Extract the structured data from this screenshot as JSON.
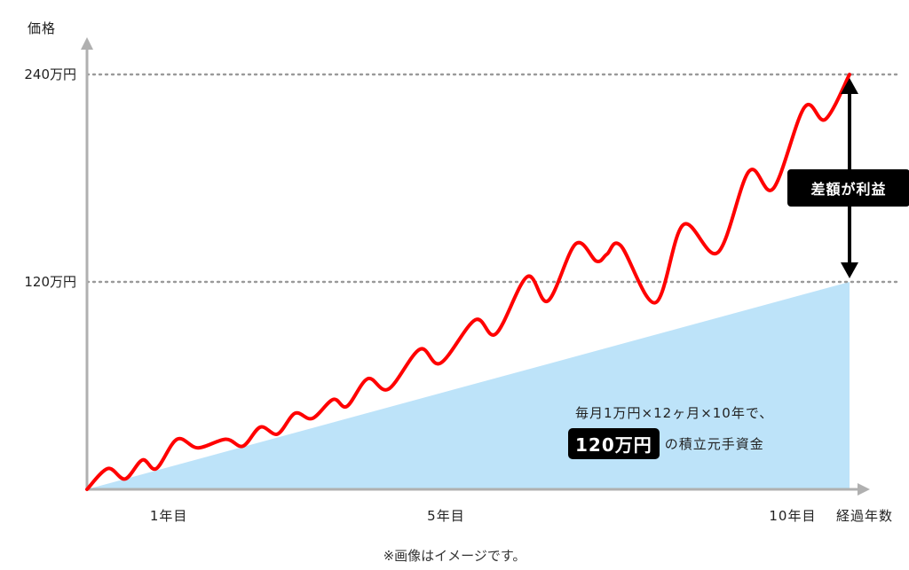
{
  "chart_data": {
    "type": "line",
    "ylabel": "価格",
    "xlabel": "経過年数",
    "y_ticks": [
      {
        "value": 120,
        "label": "120万円"
      },
      {
        "value": 240,
        "label": "240万円"
      }
    ],
    "x_ticks": [
      {
        "value": 1,
        "label": "1年目"
      },
      {
        "value": 5,
        "label": "5年目"
      },
      {
        "value": 10,
        "label": "10年目"
      }
    ],
    "ylim": [
      0,
      240
    ],
    "xlim": [
      0,
      11
    ],
    "series": [
      {
        "kind": "area",
        "color": "#bde3f9",
        "points": [
          [
            0,
            0
          ],
          [
            11,
            120
          ]
        ]
      },
      {
        "kind": "line",
        "color": "#ff0000",
        "points": [
          [
            0,
            0
          ],
          [
            0.3,
            12
          ],
          [
            0.55,
            6
          ],
          [
            0.8,
            17
          ],
          [
            1.0,
            12
          ],
          [
            1.3,
            29
          ],
          [
            1.6,
            24
          ],
          [
            2.0,
            29
          ],
          [
            2.25,
            25
          ],
          [
            2.5,
            36
          ],
          [
            2.75,
            32
          ],
          [
            3.0,
            44
          ],
          [
            3.25,
            41
          ],
          [
            3.55,
            52
          ],
          [
            3.75,
            48
          ],
          [
            4.05,
            64
          ],
          [
            4.35,
            58
          ],
          [
            4.8,
            81
          ],
          [
            5.1,
            73
          ],
          [
            5.6,
            98
          ],
          [
            5.9,
            90
          ],
          [
            6.35,
            123
          ],
          [
            6.65,
            109
          ],
          [
            7.05,
            142
          ],
          [
            7.35,
            132
          ],
          [
            7.5,
            136
          ],
          [
            7.7,
            141
          ],
          [
            8.2,
            108
          ],
          [
            8.6,
            153
          ],
          [
            9.1,
            137
          ],
          [
            9.55,
            184
          ],
          [
            9.9,
            174
          ],
          [
            10.35,
            221
          ],
          [
            10.65,
            214
          ],
          [
            11.0,
            240
          ]
        ]
      }
    ],
    "annotations": {
      "profit_label": "差額が利益",
      "principal_line1": "毎月1万円×12ヶ月×10年で、",
      "principal_highlight": "120万円",
      "principal_suffix": "の積立元手資金"
    },
    "gridlines": "dotted at y ticks"
  },
  "footnote": "※画像はイメージです。"
}
